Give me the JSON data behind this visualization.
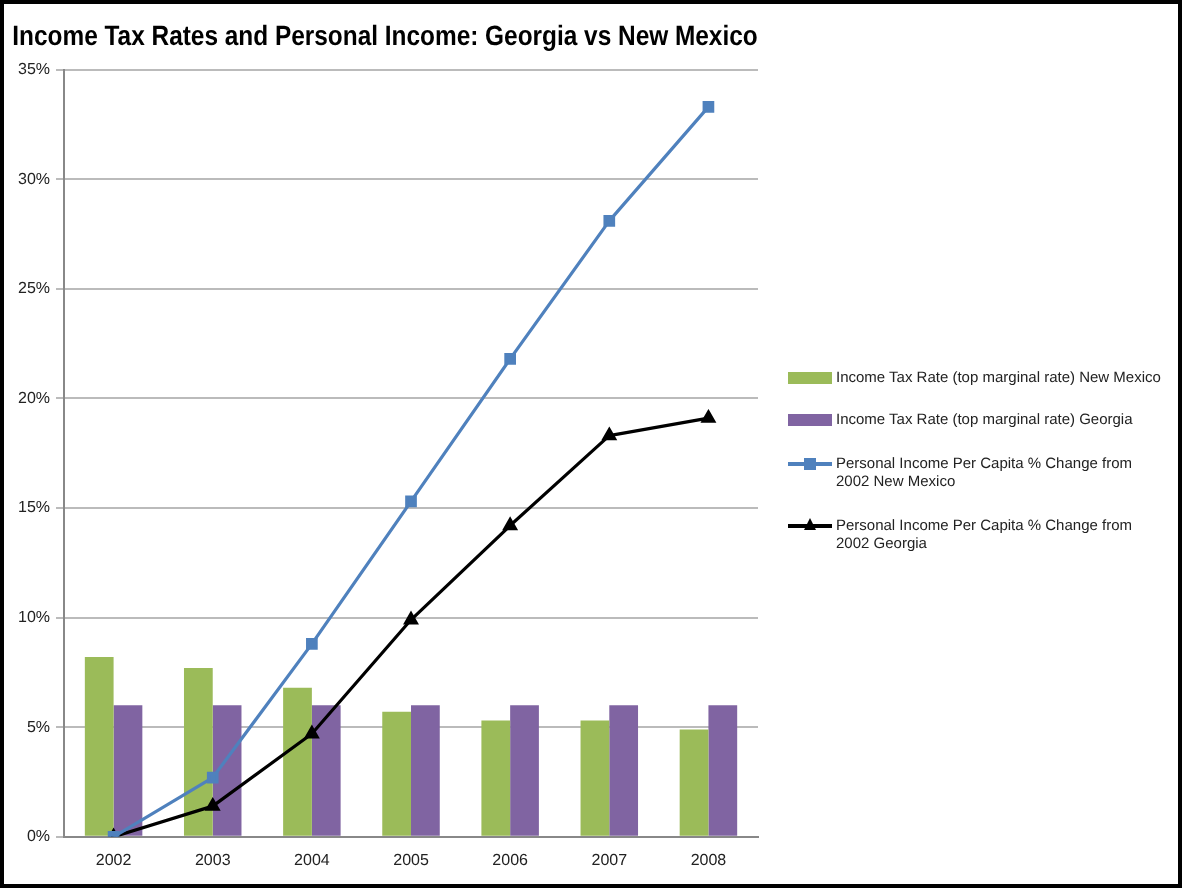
{
  "chart_data": {
    "type": "bar",
    "title": "Income Tax Rates and Personal Income: Georgia vs New Mexico",
    "categories": [
      "2002",
      "2003",
      "2004",
      "2005",
      "2006",
      "2007",
      "2008"
    ],
    "series": [
      {
        "name": "Income Tax Rate (top marginal rate) New Mexico",
        "color": "#9bbb59",
        "values": [
          8.2,
          7.7,
          6.8,
          5.7,
          5.3,
          5.3,
          4.9
        ]
      },
      {
        "name": "Income Tax Rate (top marginal rate) Georgia",
        "color": "#8064a2",
        "values": [
          6,
          6,
          6,
          6,
          6,
          6,
          6
        ]
      },
      {
        "name": "Personal Income Per Capita % Change from 2002 New Mexico",
        "type": "line",
        "color": "#4f81bd",
        "marker": "square",
        "values": [
          0,
          2.7,
          8.8,
          15.3,
          21.8,
          28.1,
          33.3
        ]
      },
      {
        "name": "Personal Income Per Capita % Change from 2002 Georgia",
        "type": "line",
        "color": "#000000",
        "marker": "triangle",
        "values": [
          0,
          1.4,
          4.7,
          9.9,
          14.2,
          18.3,
          19.1
        ]
      }
    ],
    "ylim": [
      0,
      35
    ],
    "yticks": [
      {
        "value": 0,
        "label": "0%"
      },
      {
        "value": 5,
        "label": "5%"
      },
      {
        "value": 10,
        "label": "10%"
      },
      {
        "value": 15,
        "label": "15%"
      },
      {
        "value": 20,
        "label": "20%"
      },
      {
        "value": 25,
        "label": "25%"
      },
      {
        "value": 30,
        "label": "30%"
      },
      {
        "value": 35,
        "label": "35%"
      }
    ],
    "grid": "y",
    "legend": "right"
  }
}
